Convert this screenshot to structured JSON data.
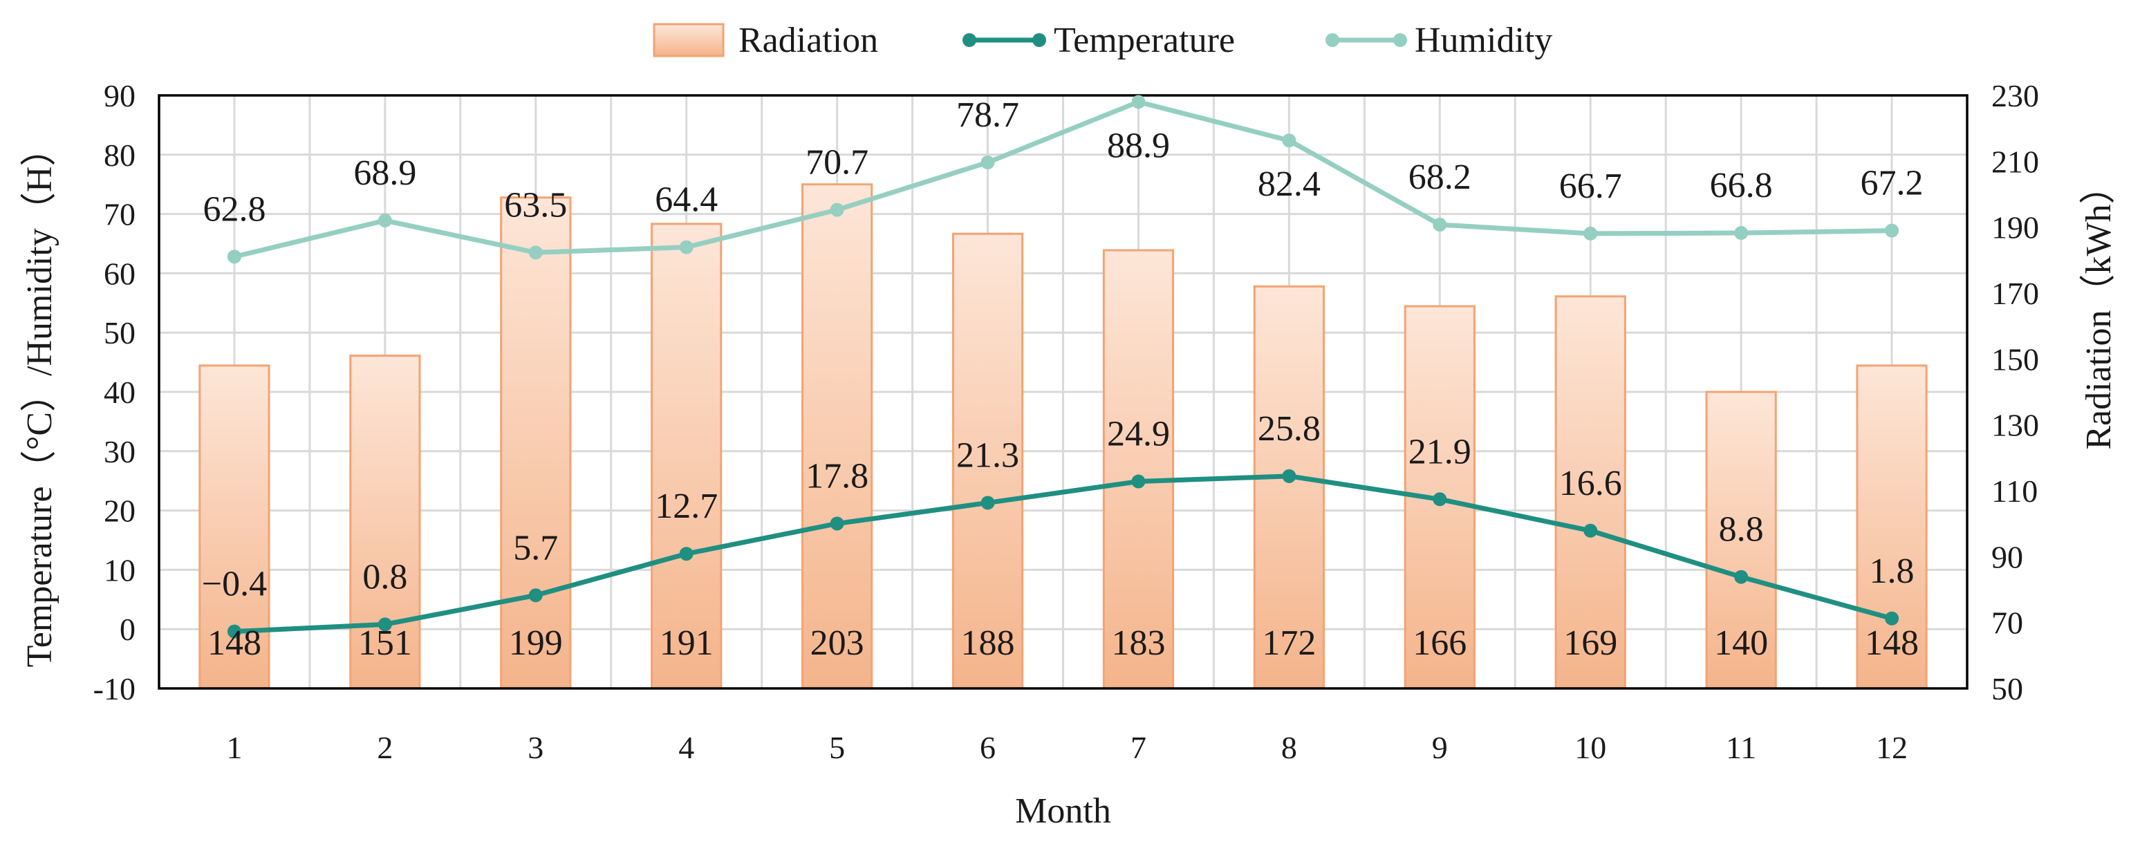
{
  "colors": {
    "radiation_fill_top": "#fde6d8",
    "radiation_fill_bottom": "#f4b48b",
    "radiation_stroke": "#f3a373",
    "temperature": "#1f8f82",
    "humidity": "#95cfc2",
    "grid": "#d9d9d9",
    "axis": "#000000"
  },
  "chart_data": {
    "type": "bar",
    "title": "",
    "categories": [
      "1",
      "2",
      "3",
      "4",
      "5",
      "6",
      "7",
      "8",
      "9",
      "10",
      "11",
      "12"
    ],
    "xlabel": "Month",
    "ylabel_left": "Temperature（°C）/Humidity（H）",
    "ylabel_right": "Radiation（kWh）",
    "ylim_left": [
      -10,
      90
    ],
    "yticks_left": [
      "-10",
      "0",
      "10",
      "20",
      "30",
      "40",
      "50",
      "60",
      "70",
      "80",
      "90"
    ],
    "ylim_right": [
      50,
      230
    ],
    "yticks_right": [
      "50",
      "70",
      "90",
      "110",
      "130",
      "150",
      "170",
      "190",
      "210",
      "230"
    ],
    "grid": true,
    "legend_position": "top-center",
    "series": [
      {
        "name": "Radiation",
        "kind": "bar",
        "axis": "right",
        "values": [
          148,
          151,
          199,
          191,
          203,
          188,
          183,
          172,
          166,
          169,
          140,
          148
        ],
        "labels": [
          "148",
          "151",
          "199",
          "191",
          "203",
          "188",
          "183",
          "172",
          "166",
          "169",
          "140",
          "148"
        ]
      },
      {
        "name": "Temperature",
        "kind": "line",
        "axis": "left",
        "values": [
          -0.4,
          0.8,
          5.7,
          12.7,
          17.8,
          21.3,
          24.9,
          25.8,
          21.9,
          16.6,
          8.8,
          1.8
        ],
        "labels": [
          "−0.4",
          "0.8",
          "5.7",
          "12.7",
          "17.8",
          "21.3",
          "24.9",
          "25.8",
          "21.9",
          "16.6",
          "8.8",
          "1.8"
        ]
      },
      {
        "name": "Humidity",
        "kind": "line",
        "axis": "left",
        "values": [
          62.8,
          68.9,
          63.5,
          64.4,
          70.7,
          78.7,
          88.9,
          82.4,
          68.2,
          66.7,
          66.8,
          67.2
        ],
        "labels": [
          "62.8",
          "68.9",
          "63.5",
          "64.4",
          "70.7",
          "78.7",
          "88.9",
          "82.4",
          "68.2",
          "66.7",
          "66.8",
          "67.2"
        ]
      }
    ]
  }
}
